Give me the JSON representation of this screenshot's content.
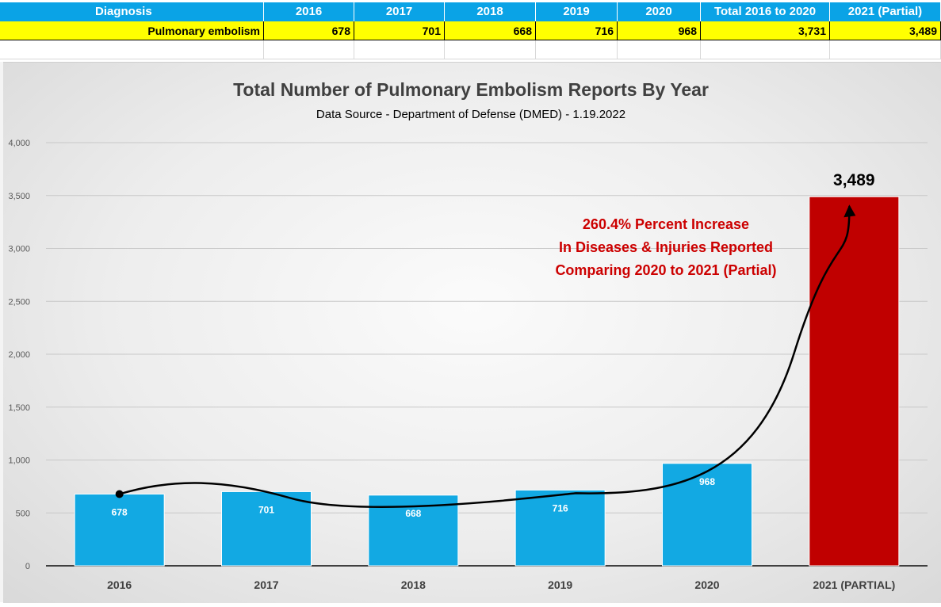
{
  "table": {
    "headers": [
      "Diagnosis",
      "2016",
      "2017",
      "2018",
      "2019",
      "2020",
      "Total 2016 to 2020",
      "2021 (Partial)"
    ],
    "row": [
      "Pulmonary embolism",
      "678",
      "701",
      "668",
      "716",
      "968",
      "3,731",
      "3,489"
    ]
  },
  "chart_data": {
    "type": "bar",
    "title": "Total Number of Pulmonary Embolism Reports By Year",
    "subtitle": "Data Source - Department of Defense (DMED) - 1.19.2022",
    "categories": [
      "2016",
      "2017",
      "2018",
      "2019",
      "2020",
      "2021 (PARTIAL)"
    ],
    "values": [
      678,
      701,
      668,
      716,
      968,
      3489
    ],
    "data_labels": [
      "678",
      "701",
      "668",
      "716",
      "968",
      "3,489"
    ],
    "yticks": [
      0,
      500,
      1000,
      1500,
      2000,
      2500,
      3000,
      3500,
      4000
    ],
    "ytick_labels": [
      "0",
      "500",
      "1,000",
      "1,500",
      "2,000",
      "2,500",
      "3,000",
      "3,500",
      "4,000"
    ],
    "ylim": [
      0,
      4000
    ],
    "grid": true,
    "colors": {
      "normal": "#12a9e3",
      "highlight": "#c00000",
      "annotation": "#cc0000"
    },
    "annotation": [
      "260.4% Percent Increase",
      "In Diseases & Injuries Reported",
      "Comparing 2020 to 2021 (Partial)"
    ]
  }
}
